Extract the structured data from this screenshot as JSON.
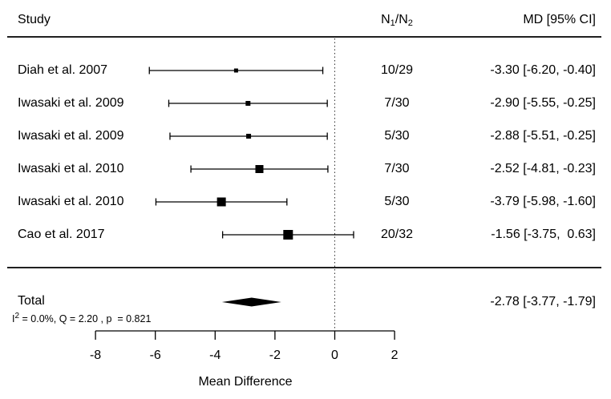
{
  "page": {
    "background": "#ffffff",
    "ink": "#000000"
  },
  "header": {
    "study": "Study",
    "n_col": {
      "base1": "N",
      "sub1": "1",
      "slash": "/",
      "base2": "N",
      "sub2": "2"
    },
    "md_col": "MD [95% CI]"
  },
  "chart_data": {
    "type": "forest",
    "title": "",
    "xlabel": "Mean Difference",
    "x_ticks": [
      -8,
      -6,
      -4,
      -2,
      0,
      2
    ],
    "x_range": [
      -8,
      2
    ],
    "zero_line": 0,
    "grid": false,
    "studies": [
      {
        "label": "Diah et al. 2007",
        "n": "10/29",
        "md": -3.3,
        "ci": [
          -6.2,
          -0.4
        ],
        "md_text": "-3.30 [-6.20, -0.40]",
        "size": 5
      },
      {
        "label": "Iwasaki et al. 2009",
        "n": "7/30",
        "md": -2.9,
        "ci": [
          -5.55,
          -0.25
        ],
        "md_text": "-2.90 [-5.55, -0.25]",
        "size": 6
      },
      {
        "label": "Iwasaki et al. 2009",
        "n": "5/30",
        "md": -2.88,
        "ci": [
          -5.51,
          -0.25
        ],
        "md_text": "-2.88 [-5.51, -0.25]",
        "size": 6
      },
      {
        "label": "Iwasaki et al. 2010",
        "n": "7/30",
        "md": -2.52,
        "ci": [
          -4.81,
          -0.23
        ],
        "md_text": "-2.52 [-4.81, -0.23]",
        "size": 10
      },
      {
        "label": "Iwasaki et al. 2010",
        "n": "5/30",
        "md": -3.79,
        "ci": [
          -5.98,
          -1.6
        ],
        "md_text": "-3.79 [-5.98, -1.60]",
        "size": 11
      },
      {
        "label": "Cao et al. 2017",
        "n": "20/32",
        "md": -1.56,
        "ci": [
          -3.75,
          0.63
        ],
        "md_text": "-1.56 [-3.75,  0.63]",
        "size": 12
      }
    ],
    "summary": {
      "label": "Total",
      "md": -2.78,
      "ci": [
        -3.77,
        -1.79
      ],
      "md_text": "-2.78 [-3.77, -1.79]",
      "heterogeneity": {
        "base": "I",
        "sup": "2",
        "rest": " = 0.0%, Q = 2.20 , p  = 0.821"
      }
    }
  }
}
